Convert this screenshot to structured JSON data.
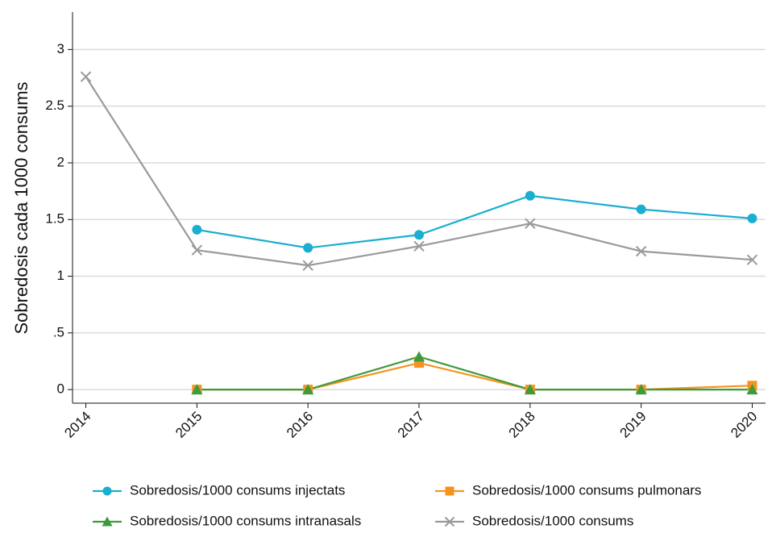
{
  "chart_data": {
    "type": "line",
    "y_label": "Sobredosis cada 1000 consums",
    "x": [
      2014,
      2015,
      2016,
      2017,
      2018,
      2019,
      2020
    ],
    "series": [
      {
        "name": "Sobredosis/1000 consums injectats",
        "color": "#1aaed0",
        "marker": "circle",
        "values": [
          null,
          1.41,
          1.25,
          1.365,
          1.71,
          1.59,
          1.51
        ]
      },
      {
        "name": "Sobredosis/1000 consums pulmonars",
        "color": "#f5931e",
        "marker": "square",
        "values": [
          null,
          0,
          0,
          0.235,
          0,
          0,
          0.035
        ]
      },
      {
        "name": "Sobredosis/1000 consums intranasals",
        "color": "#3c9b3c",
        "marker": "triangle",
        "values": [
          null,
          0,
          0,
          0.29,
          0,
          0,
          0
        ]
      },
      {
        "name": "Sobredosis/1000 consums",
        "color": "#9a9a9a",
        "marker": "x",
        "values": [
          2.76,
          1.23,
          1.095,
          1.265,
          1.465,
          1.22,
          1.145
        ]
      }
    ],
    "xlim": [
      2013.88,
      2020.12
    ],
    "xticks": [
      2014,
      2015,
      2016,
      2017,
      2018,
      2019,
      2020
    ],
    "ylim": [
      -0.12,
      3.33
    ],
    "yticks": [
      0,
      {
        "value": 0.5,
        "label": ".5"
      },
      1,
      1.5,
      2,
      2.5,
      3
    ],
    "grid": true,
    "legend": "bottom"
  }
}
